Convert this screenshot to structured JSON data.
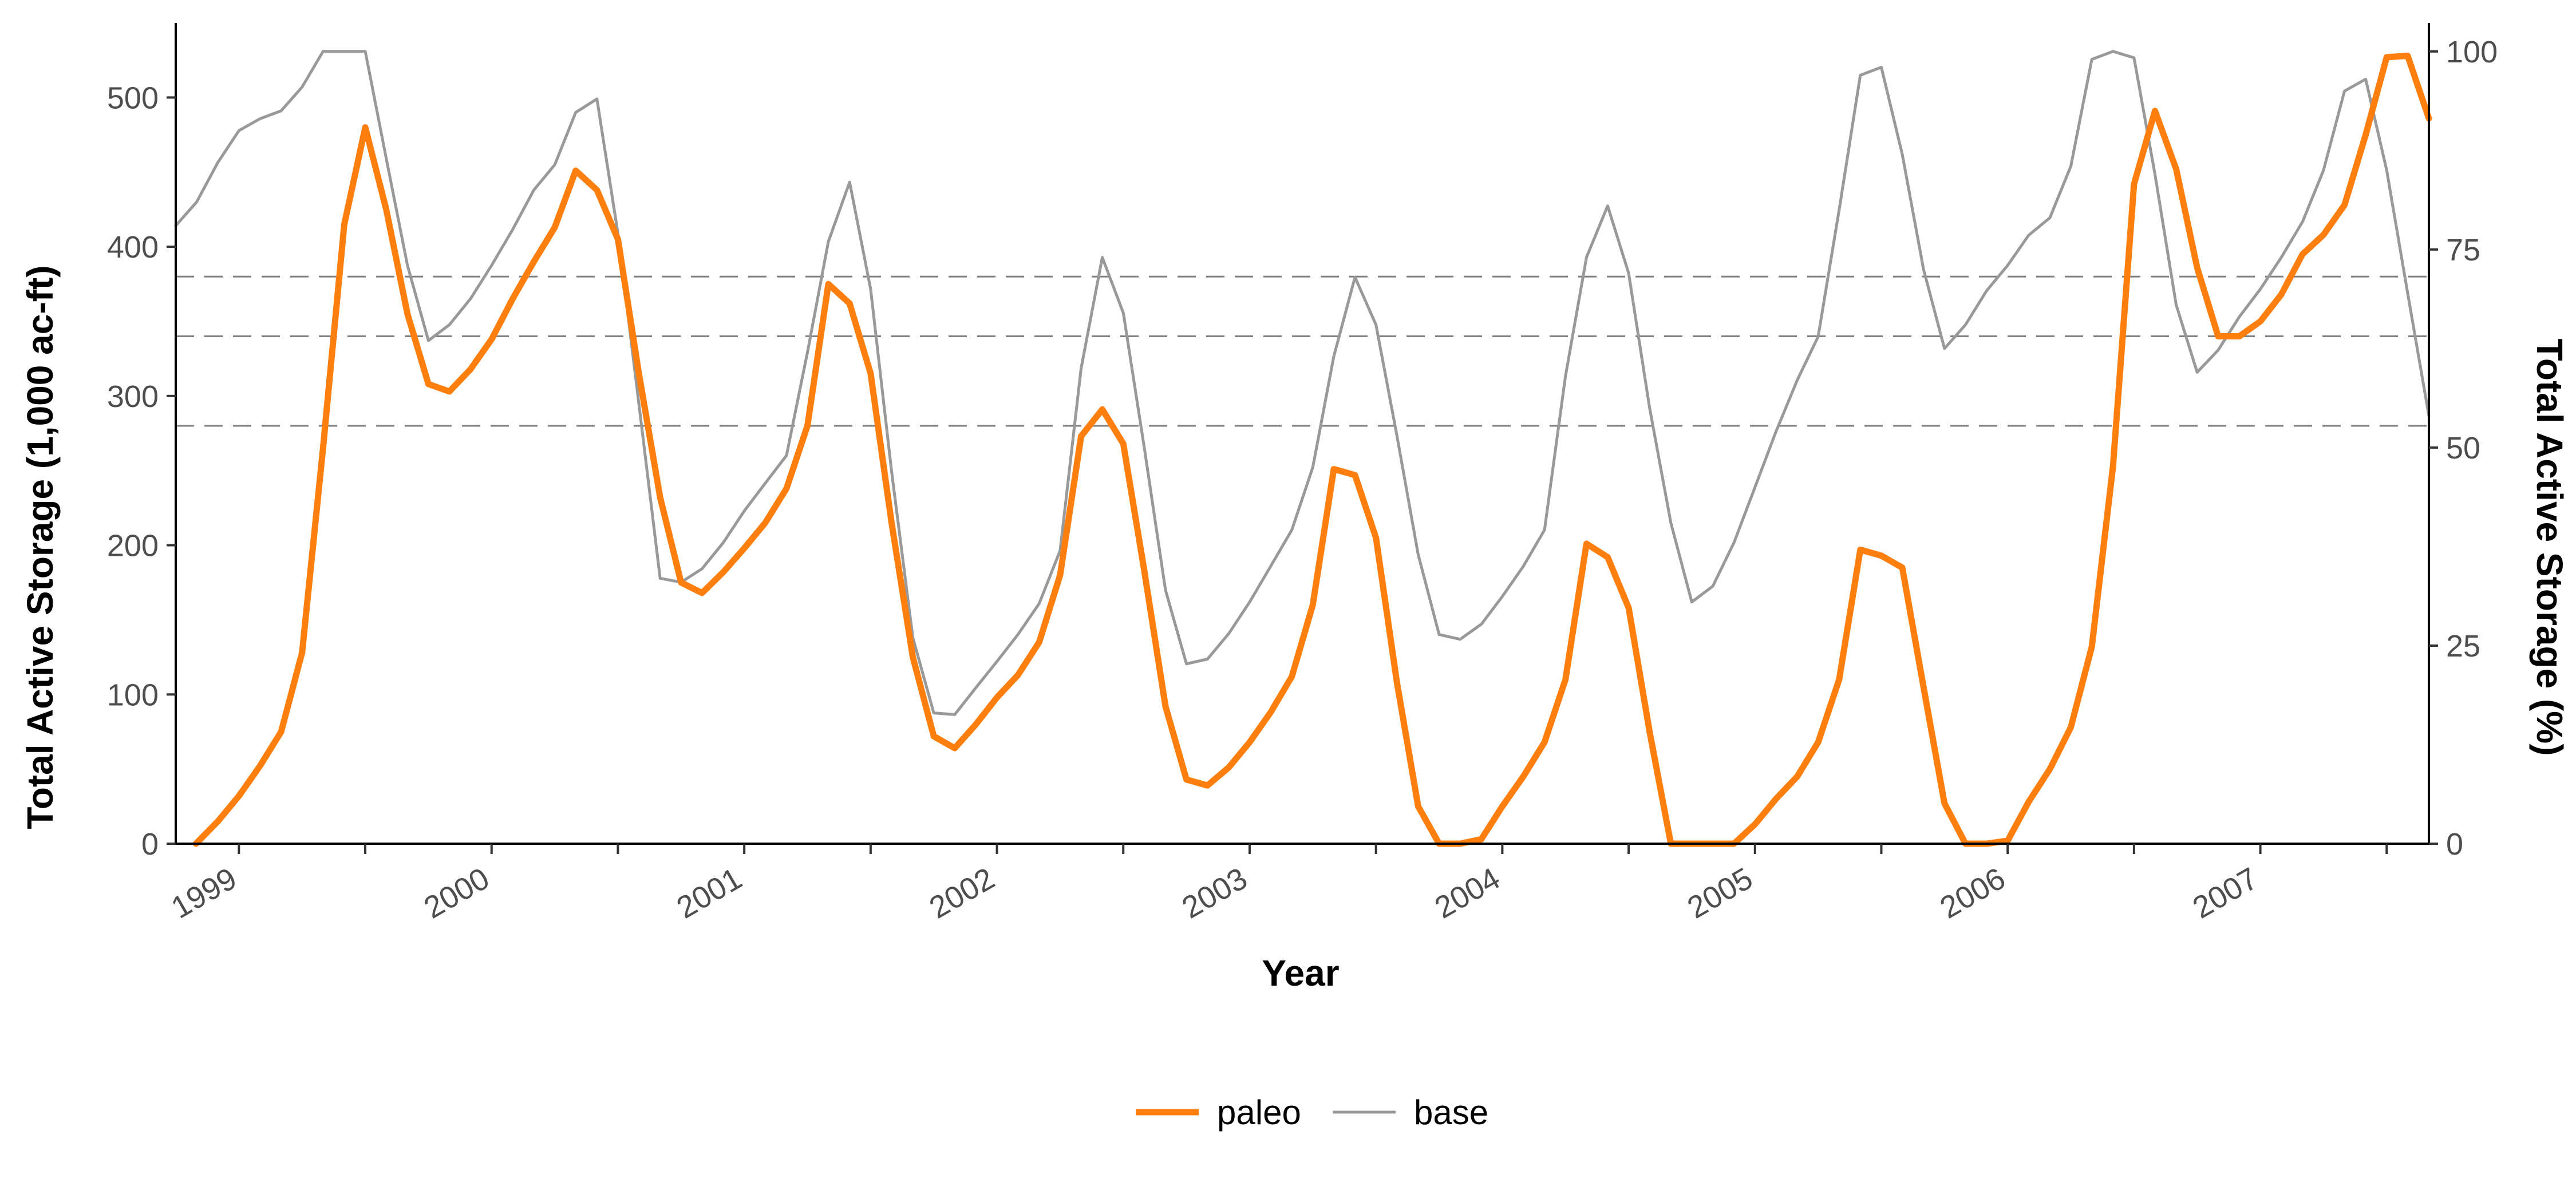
{
  "chart_data": {
    "type": "line",
    "xlabel": "Year",
    "ylabel_left": "Total Active Storage (1,000 ac-ft)",
    "ylabel_right": "Total Active Storage (%)",
    "x_tick_labels": [
      "1999",
      "2000",
      "2001",
      "2002",
      "2003",
      "2004",
      "2005",
      "2006",
      "2007"
    ],
    "ylim_left": [
      0,
      550
    ],
    "yticks_left": [
      0,
      100,
      200,
      300,
      400,
      500
    ],
    "ylim_right": [
      0,
      103.6
    ],
    "yticks_right": [
      0,
      25,
      50,
      75,
      100
    ],
    "reference_lines": [
      380,
      340,
      280
    ],
    "grid": false,
    "legend_position": "bottom",
    "colors": {
      "paleo": "#ff7f0e",
      "base": "#999999",
      "reference": "#808080"
    },
    "series": [
      {
        "name": "paleo",
        "x": [
          1998.83,
          1998.917,
          1999.0,
          1999.083,
          1999.167,
          1999.25,
          1999.333,
          1999.417,
          1999.5,
          1999.583,
          1999.667,
          1999.75,
          1999.833,
          1999.917,
          2000.0,
          2000.083,
          2000.167,
          2000.25,
          2000.333,
          2000.417,
          2000.5,
          2000.583,
          2000.667,
          2000.75,
          2000.833,
          2000.917,
          2001.0,
          2001.083,
          2001.167,
          2001.25,
          2001.333,
          2001.417,
          2001.5,
          2001.583,
          2001.667,
          2001.75,
          2001.833,
          2001.917,
          2002.0,
          2002.083,
          2002.167,
          2002.25,
          2002.333,
          2002.417,
          2002.5,
          2002.583,
          2002.667,
          2002.75,
          2002.833,
          2002.917,
          2003.0,
          2003.083,
          2003.167,
          2003.25,
          2003.333,
          2003.417,
          2003.5,
          2003.583,
          2003.667,
          2003.75,
          2003.833,
          2003.917,
          2004.0,
          2004.083,
          2004.167,
          2004.25,
          2004.333,
          2004.417,
          2004.5,
          2004.583,
          2004.667,
          2004.75,
          2004.833,
          2004.917,
          2005.0,
          2005.083,
          2005.167,
          2005.25,
          2005.333,
          2005.417,
          2005.5,
          2005.583,
          2005.667,
          2005.75,
          2005.833,
          2005.917,
          2006.0,
          2006.083,
          2006.167,
          2006.25,
          2006.333,
          2006.417,
          2006.5,
          2006.583,
          2006.667,
          2006.75,
          2006.833,
          2006.917,
          2007.0,
          2007.083,
          2007.167,
          2007.25,
          2007.333,
          2007.417,
          2007.5,
          2007.583,
          2007.667
        ],
        "values": [
          0,
          15,
          32,
          52,
          75,
          128,
          265,
          415,
          480,
          425,
          355,
          308,
          303,
          318,
          338,
          365,
          390,
          413,
          451,
          438,
          405,
          315,
          232,
          175,
          168,
          182,
          198,
          215,
          238,
          280,
          375,
          362,
          315,
          215,
          125,
          72,
          64,
          80,
          98,
          113,
          135,
          180,
          273,
          291,
          268,
          183,
          92,
          43,
          39,
          51,
          68,
          88,
          112,
          160,
          251,
          247,
          205,
          108,
          25,
          0,
          0,
          3,
          25,
          45,
          68,
          110,
          201,
          192,
          158,
          75,
          0,
          0,
          0,
          0,
          13,
          30,
          45,
          68,
          110,
          197,
          193,
          185,
          105,
          27,
          0,
          0,
          2,
          28,
          50,
          78,
          132,
          253,
          442,
          491,
          452,
          386,
          340,
          340,
          350,
          368,
          395,
          408,
          428,
          475,
          527,
          528,
          486
        ]
      },
      {
        "name": "base",
        "x": [
          1998.75,
          1998.833,
          1998.917,
          1999.0,
          1999.083,
          1999.167,
          1999.25,
          1999.333,
          1999.417,
          1999.5,
          1999.583,
          1999.667,
          1999.75,
          1999.833,
          1999.917,
          2000.0,
          2000.083,
          2000.167,
          2000.25,
          2000.333,
          2000.417,
          2000.5,
          2000.583,
          2000.667,
          2000.75,
          2000.833,
          2000.917,
          2001.0,
          2001.083,
          2001.167,
          2001.25,
          2001.333,
          2001.417,
          2001.5,
          2001.583,
          2001.667,
          2001.75,
          2001.833,
          2001.917,
          2002.0,
          2002.083,
          2002.167,
          2002.25,
          2002.333,
          2002.417,
          2002.5,
          2002.583,
          2002.667,
          2002.75,
          2002.833,
          2002.917,
          2003.0,
          2003.083,
          2003.167,
          2003.25,
          2003.333,
          2003.417,
          2003.5,
          2003.583,
          2003.667,
          2003.75,
          2003.833,
          2003.917,
          2004.0,
          2004.083,
          2004.167,
          2004.25,
          2004.333,
          2004.417,
          2004.5,
          2004.583,
          2004.667,
          2004.75,
          2004.833,
          2004.917,
          2005.0,
          2005.083,
          2005.167,
          2005.25,
          2005.333,
          2005.417,
          2005.5,
          2005.583,
          2005.667,
          2005.75,
          2005.833,
          2005.917,
          2006.0,
          2006.083,
          2006.167,
          2006.25,
          2006.333,
          2006.417,
          2006.5,
          2006.583,
          2006.667,
          2006.75,
          2006.833,
          2006.917,
          2007.0,
          2007.083,
          2007.167,
          2007.25,
          2007.333,
          2007.417,
          2007.5,
          2007.583,
          2007.667
        ],
        "values": [
          78,
          81,
          86,
          90,
          91.5,
          92.5,
          95.5,
          100,
          100,
          100,
          86.5,
          73,
          63.5,
          65.5,
          68.8,
          73,
          77.5,
          82.5,
          85.7,
          92.3,
          94,
          77,
          55.5,
          33.5,
          33,
          34.7,
          38,
          42,
          45.5,
          49,
          62,
          76,
          83.5,
          70,
          47,
          26,
          16.5,
          16.3,
          19.7,
          23,
          26.4,
          30.3,
          37,
          60,
          74,
          67,
          50,
          32,
          22.7,
          23.3,
          26.5,
          30.5,
          35,
          39.6,
          47.5,
          61.5,
          71.5,
          65.5,
          51.5,
          36.5,
          26.4,
          25.8,
          27.7,
          31.2,
          35,
          39.6,
          59,
          74,
          80.5,
          72,
          55,
          40.5,
          30.5,
          32.5,
          38,
          45,
          52,
          58.5,
          64,
          80,
          97,
          98,
          87,
          72.5,
          62.5,
          65.5,
          69.8,
          73,
          76.8,
          79,
          85.5,
          99,
          100,
          99.2,
          84.5,
          68,
          59.5,
          62.3,
          66.5,
          70,
          74,
          78.5,
          85,
          95,
          96.5,
          85,
          69.5,
          54
        ]
      }
    ]
  }
}
